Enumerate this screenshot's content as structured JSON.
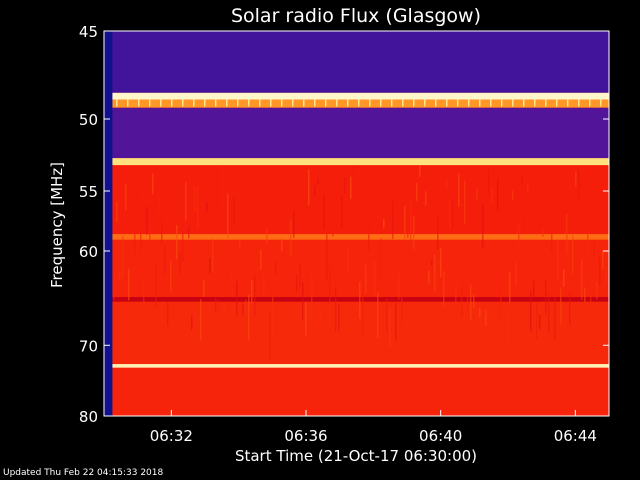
{
  "chart_data": {
    "type": "heatmap",
    "title": "Solar radio Flux (Glasgow)",
    "xlabel": "Start Time (21-Oct-17 06:30:00)",
    "ylabel": "Frequency [MHz]",
    "x_ticks": [
      {
        "label": "06:32",
        "minutes": 2
      },
      {
        "label": "06:36",
        "minutes": 6
      },
      {
        "label": "06:40",
        "minutes": 10
      },
      {
        "label": "06:44",
        "minutes": 14
      }
    ],
    "y_ticks": [
      45,
      50,
      55,
      60,
      70,
      80
    ],
    "xlim_minutes": [
      0,
      15
    ],
    "ylim_mhz": [
      45,
      80
    ],
    "y_scale": "reciprocal",
    "colormap": "black-blue-purple-red-orange-yellow-white",
    "bands": [
      {
        "from": 45.0,
        "to": 48.4,
        "level": 0.18
      },
      {
        "from": 48.4,
        "to": 48.8,
        "level": 0.97
      },
      {
        "from": 48.8,
        "to": 49.3,
        "level": 0.75
      },
      {
        "from": 49.3,
        "to": 52.6,
        "level": 0.2
      },
      {
        "from": 52.6,
        "to": 53.1,
        "level": 0.9
      },
      {
        "from": 53.1,
        "to": 58.5,
        "level": 0.55
      },
      {
        "from": 58.5,
        "to": 59.0,
        "level": 0.68
      },
      {
        "from": 59.0,
        "to": 64.5,
        "level": 0.56
      },
      {
        "from": 64.5,
        "to": 65.0,
        "level": 0.42
      },
      {
        "from": 65.0,
        "to": 72.4,
        "level": 0.57
      },
      {
        "from": 72.4,
        "to": 72.9,
        "level": 0.95
      },
      {
        "from": 72.9,
        "to": 80.0,
        "level": 0.56
      }
    ],
    "quiet_minutes": [
      0,
      0.25
    ]
  },
  "footer": {
    "updated": "Updated Thu Feb 22 04:15:33 2018"
  }
}
